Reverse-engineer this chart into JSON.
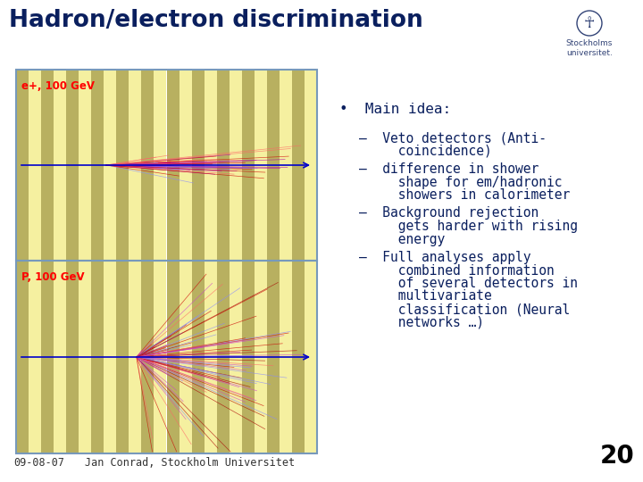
{
  "title": "Hadron/electron discrimination",
  "title_color": "#0a1f5e",
  "title_fontsize": 18,
  "background_color": "#ffffff",
  "text_color": "#0a1f5e",
  "bullet_main": "Main idea:",
  "sub_bullets": [
    "Veto detectors (Anti-\ncoincidence)",
    "difference in shower\nshape for em/hadronic\nshowers in calorimeter",
    "Background rejection\ngets harder with rising\nenergy",
    "Full analyses apply\ncombined information\nof several detectors in\nmultivariate\nclassification (Neural\nnetworks …)"
  ],
  "footer_left": "09-08-07",
  "footer_center": "Jan Conrad, Stockholm Universitet",
  "footer_page": "20",
  "top_label": "e+, 100 GeV",
  "bottom_label": "P, 100 GeV",
  "stripe_dark": "#b8b060",
  "stripe_light": "#f5f0a0",
  "border_color": "#7799bb",
  "beam_color": "#0000cc",
  "shower_colors_em": [
    "#cc0000",
    "#8888ff",
    "#ff6666",
    "#aa00aa"
  ],
  "shower_colors_had": [
    "#cc0000",
    "#8888ff",
    "#ff6666",
    "#aa0000",
    "#cc44cc"
  ]
}
